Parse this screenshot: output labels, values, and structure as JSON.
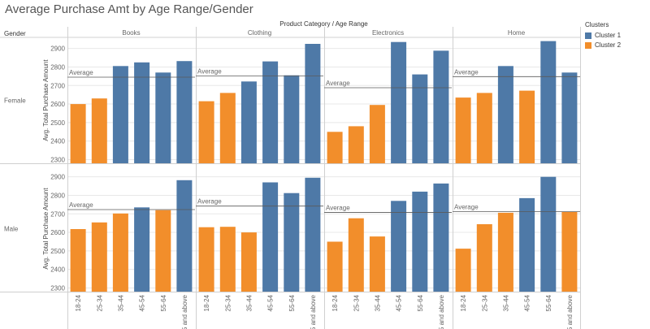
{
  "title": "Average Purchase Amt by Age Range/Gender",
  "legend": {
    "title": "Clusters",
    "items": [
      {
        "label": "Cluster 1",
        "color": "#4e79a7"
      },
      {
        "label": "Cluster 2",
        "color": "#f28e2b"
      }
    ]
  },
  "chart_data": {
    "type": "bar",
    "title": "Average Purchase Amt by Age Range/Gender",
    "column_header": "Product Category  /  Age Range",
    "row_header": "Gender",
    "ylabel": "Avg. Total Purchase Amount",
    "ylim": [
      2280,
      2960
    ],
    "yticks": [
      2300,
      2400,
      2500,
      2600,
      2700,
      2800,
      2900
    ],
    "categories": [
      "18-24",
      "25-34",
      "35-44",
      "45-54",
      "55-64",
      "65 and above"
    ],
    "panels": [
      "Books",
      "Clothing",
      "Electronics",
      "Home"
    ],
    "rows": [
      "Female",
      "Male"
    ],
    "reference_line_label": "Average",
    "cells": [
      {
        "row": "Female",
        "panel": "Books",
        "average": 2745,
        "values": [
          2600,
          2630,
          2805,
          2825,
          2770,
          2832
        ],
        "clusters": [
          "Cluster 2",
          "Cluster 2",
          "Cluster 1",
          "Cluster 1",
          "Cluster 1",
          "Cluster 1"
        ]
      },
      {
        "row": "Female",
        "panel": "Clothing",
        "average": 2752,
        "values": [
          2615,
          2660,
          2722,
          2830,
          2755,
          2925
        ],
        "clusters": [
          "Cluster 2",
          "Cluster 2",
          "Cluster 1",
          "Cluster 1",
          "Cluster 1",
          "Cluster 1"
        ]
      },
      {
        "row": "Female",
        "panel": "Electronics",
        "average": 2688,
        "values": [
          2450,
          2480,
          2595,
          2935,
          2760,
          2888
        ],
        "clusters": [
          "Cluster 2",
          "Cluster 2",
          "Cluster 2",
          "Cluster 1",
          "Cluster 1",
          "Cluster 1"
        ]
      },
      {
        "row": "Female",
        "panel": "Home",
        "average": 2748,
        "values": [
          2635,
          2660,
          2805,
          2672,
          2940,
          2770
        ],
        "clusters": [
          "Cluster 2",
          "Cluster 2",
          "Cluster 1",
          "Cluster 2",
          "Cluster 1",
          "Cluster 1"
        ]
      },
      {
        "row": "Male",
        "panel": "Books",
        "average": 2723,
        "values": [
          2618,
          2654,
          2702,
          2735,
          2720,
          2882
        ],
        "clusters": [
          "Cluster 2",
          "Cluster 2",
          "Cluster 2",
          "Cluster 1",
          "Cluster 2",
          "Cluster 1"
        ]
      },
      {
        "row": "Male",
        "panel": "Clothing",
        "average": 2742,
        "values": [
          2628,
          2630,
          2600,
          2870,
          2812,
          2895
        ],
        "clusters": [
          "Cluster 2",
          "Cluster 2",
          "Cluster 2",
          "Cluster 1",
          "Cluster 1",
          "Cluster 1"
        ]
      },
      {
        "row": "Male",
        "panel": "Electronics",
        "average": 2708,
        "values": [
          2550,
          2676,
          2578,
          2770,
          2820,
          2864
        ],
        "clusters": [
          "Cluster 2",
          "Cluster 2",
          "Cluster 2",
          "Cluster 1",
          "Cluster 1",
          "Cluster 1"
        ]
      },
      {
        "row": "Male",
        "panel": "Home",
        "average": 2712,
        "values": [
          2512,
          2644,
          2706,
          2785,
          2900,
          2710
        ],
        "clusters": [
          "Cluster 2",
          "Cluster 2",
          "Cluster 2",
          "Cluster 1",
          "Cluster 1",
          "Cluster 2"
        ]
      }
    ]
  }
}
